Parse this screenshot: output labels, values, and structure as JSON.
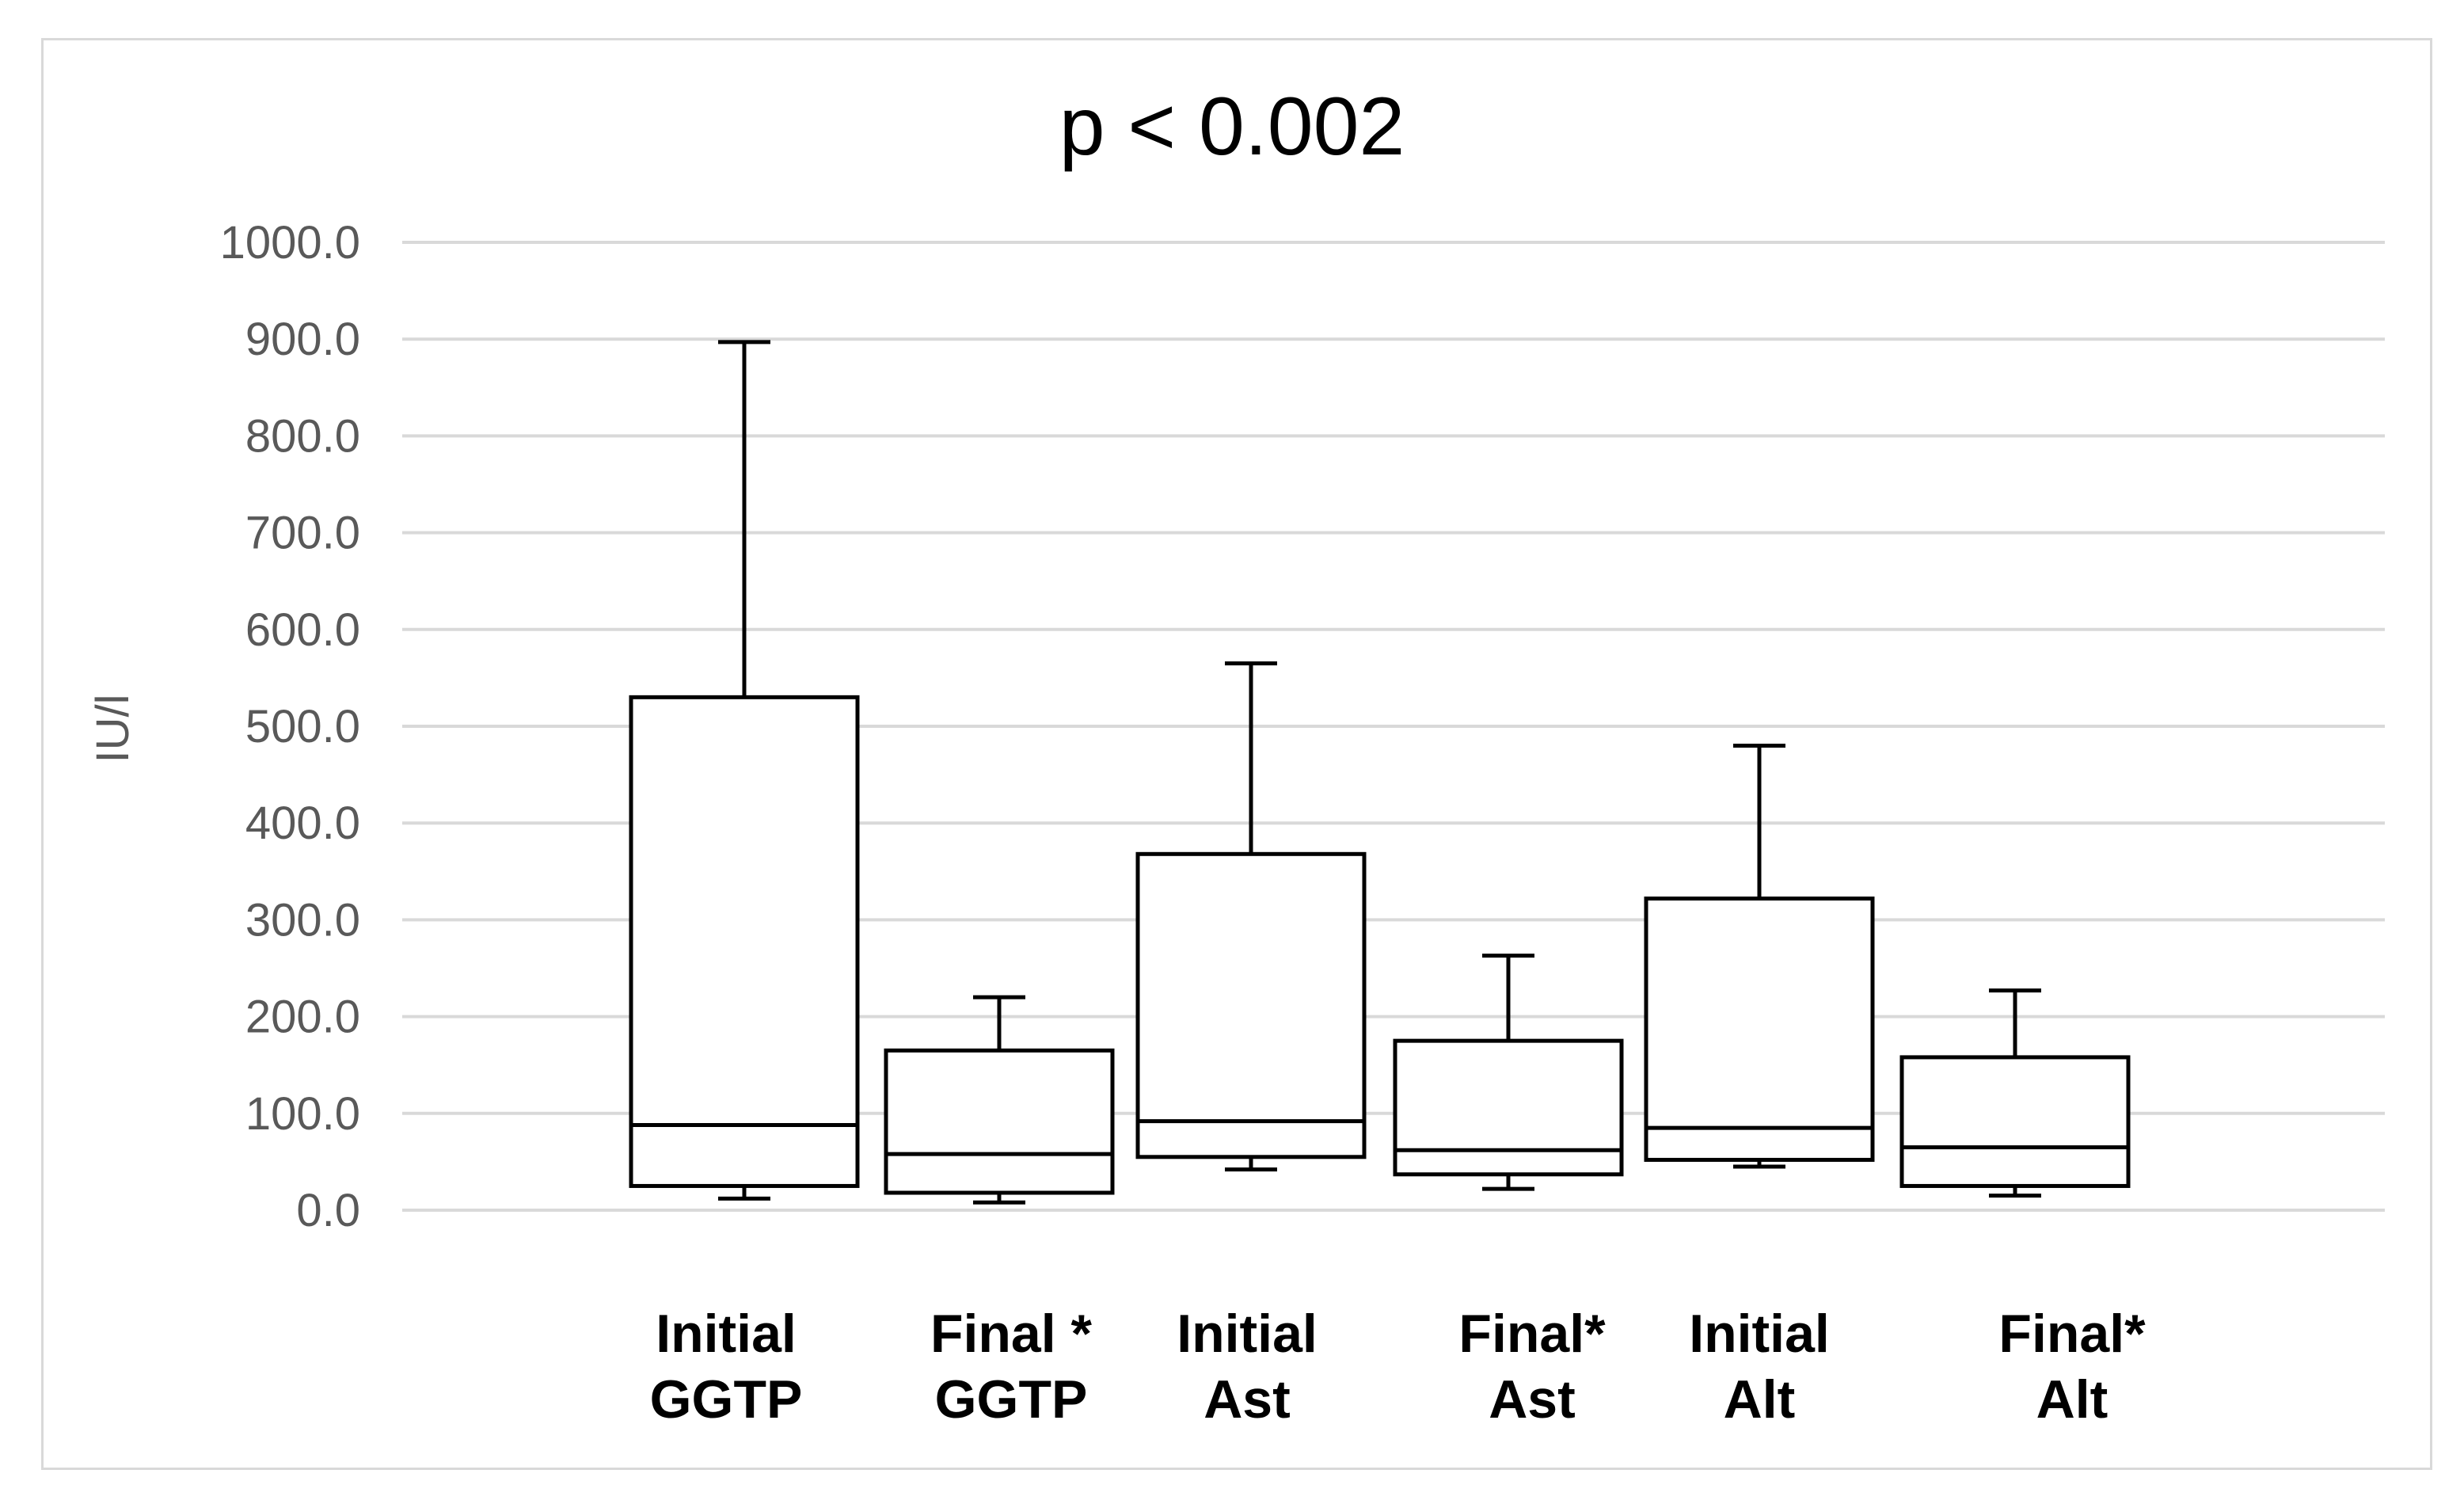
{
  "chart_data": {
    "type": "boxplot",
    "title": "p < 0.002",
    "xlabel": "",
    "ylabel": "IU/l",
    "ylim": [
      0,
      1000
    ],
    "yticks": [
      "0.0",
      "100.0",
      "200.0",
      "300.0",
      "400.0",
      "500.0",
      "600.0",
      "700.0",
      "800.0",
      "900.0",
      "1000.0"
    ],
    "grid": true,
    "categories": [
      {
        "line1": "Initial",
        "line2": "GGTP",
        "min": 12,
        "q1": 25,
        "median": 88,
        "q3": 530,
        "max": 897
      },
      {
        "line1": "Final *",
        "line2": "GGTP",
        "min": 8,
        "q1": 18,
        "median": 58,
        "q3": 165,
        "max": 220
      },
      {
        "line1": "Initial",
        "line2": "Ast",
        "min": 42,
        "q1": 55,
        "median": 92,
        "q3": 368,
        "max": 565
      },
      {
        "line1": "Final*",
        "line2": "Ast",
        "min": 22,
        "q1": 37,
        "median": 62,
        "q3": 175,
        "max": 263
      },
      {
        "line1": "Initial",
        "line2": "Alt",
        "min": 45,
        "q1": 52,
        "median": 85,
        "q3": 322,
        "max": 480
      },
      {
        "line1": "Final*",
        "line2": "Alt",
        "min": 15,
        "q1": 25,
        "median": 65,
        "q3": 158,
        "max": 227
      }
    ]
  }
}
